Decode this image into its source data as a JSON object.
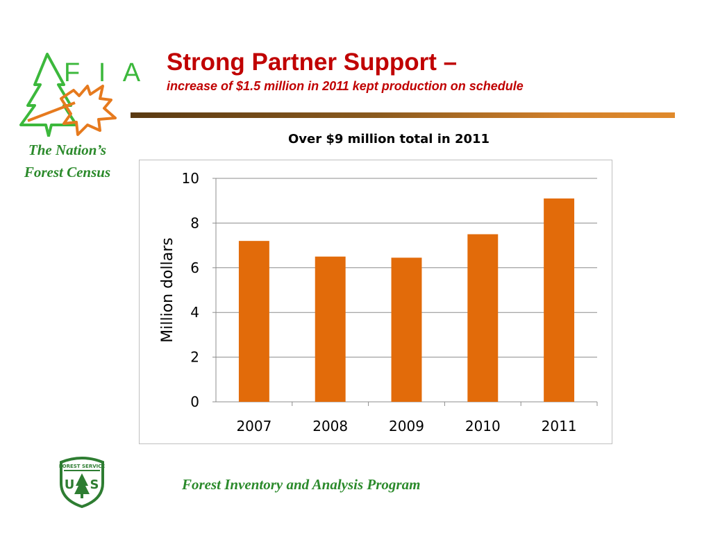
{
  "logo": {
    "letters": "F I A",
    "tagline_line1": "The Nation’s",
    "tagline_line2": "Forest Census",
    "colors": {
      "green": "#3cb83c",
      "orange": "#e67a1e"
    }
  },
  "header": {
    "title": "Strong Partner Support –",
    "subtitle": "increase of $1.5 million in 2011 kept production on schedule",
    "title_color": "#c00000"
  },
  "footer": {
    "text": "Forest Inventory and Analysis Program",
    "color": "#2b8a2b"
  },
  "chart_data": {
    "type": "bar",
    "title": "Over $9 million total in 2011",
    "categories": [
      "2007",
      "2008",
      "2009",
      "2010",
      "2011"
    ],
    "values": [
      7.2,
      6.5,
      6.45,
      7.5,
      9.1
    ],
    "ylabel": "Million dollars",
    "xlabel": "",
    "ylim": [
      0,
      10
    ],
    "yticks": [
      0,
      2,
      4,
      6,
      8,
      10
    ],
    "grid": true,
    "legend": "none",
    "bar_color": "#e26b0a"
  }
}
